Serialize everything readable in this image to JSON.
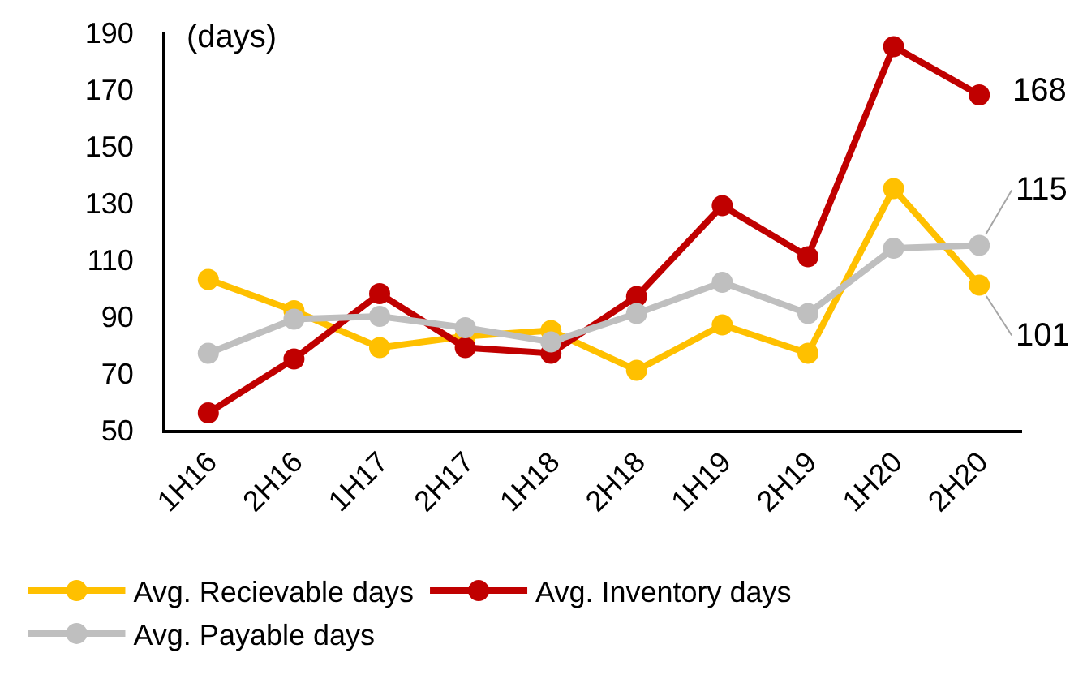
{
  "chart_data": {
    "type": "line",
    "ylabel": "(days)",
    "categories": [
      "1H16",
      "2H16",
      "1H17",
      "2H17",
      "1H18",
      "2H18",
      "1H19",
      "2H19",
      "1H20",
      "2H20"
    ],
    "series": [
      {
        "name": "Avg. Recievable days",
        "color": "#ffc000",
        "values": [
          103,
          92,
          79,
          83,
          85,
          71,
          87,
          77,
          135,
          101
        ],
        "value_labels": [
          null,
          null,
          null,
          null,
          null,
          null,
          null,
          null,
          null,
          "101"
        ]
      },
      {
        "name": "Avg. Inventory days",
        "color": "#c00000",
        "values": [
          56,
          75,
          98,
          79,
          77,
          97,
          129,
          111,
          185,
          168
        ],
        "value_labels": [
          null,
          null,
          null,
          null,
          null,
          null,
          null,
          null,
          null,
          "168"
        ]
      },
      {
        "name": "Avg. Payable days",
        "color": "#bfbfbf",
        "values": [
          77,
          89,
          90,
          86,
          81,
          91,
          102,
          91,
          114,
          115
        ],
        "value_labels": [
          null,
          null,
          null,
          null,
          null,
          null,
          null,
          null,
          null,
          "115"
        ]
      }
    ],
    "ylim": [
      50,
      190
    ],
    "yticks": [
      50,
      70,
      90,
      110,
      130,
      150,
      170,
      190
    ],
    "grid": false,
    "legend": "bottom",
    "marker": "circle",
    "line_style": "solid"
  }
}
